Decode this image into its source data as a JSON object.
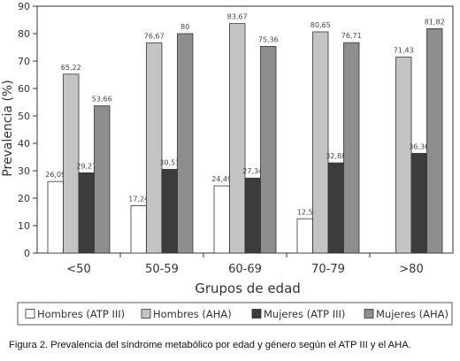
{
  "chart_data": {
    "type": "bar",
    "xlabel": "Grupos de edad",
    "ylabel": "Prevalencia (%)",
    "ylim": [
      0,
      90
    ],
    "yticks": [
      0,
      10,
      20,
      30,
      40,
      50,
      60,
      70,
      80,
      90
    ],
    "grid": false,
    "legend_position": "bottom",
    "categories": [
      "<50",
      "50-59",
      "60-69",
      "70-79",
      ">80"
    ],
    "series": [
      {
        "name": "Hombres (ATP III)",
        "color": "#ffffff",
        "values": [
          26.09,
          17.24,
          24.49,
          12.5,
          null
        ],
        "labels": [
          "26,09",
          "17,24",
          "24,49",
          "12,5",
          ""
        ]
      },
      {
        "name": "Hombres (AHA)",
        "color": "#c4c4c4",
        "values": [
          65.22,
          76.67,
          83.67,
          80.65,
          71.43
        ],
        "labels": [
          "65,22",
          "76,67",
          "83,67",
          "80,65",
          "71,43"
        ]
      },
      {
        "name": "Mujeres (ATP III)",
        "color": "#3c3c3c",
        "values": [
          29.27,
          30.53,
          27.34,
          32.88,
          36.36
        ],
        "labels": [
          "29,27",
          "30,53",
          "27,34",
          "32,88",
          "36,36"
        ]
      },
      {
        "name": "Mujeres (AHA)",
        "color": "#8e8e8e",
        "values": [
          53.66,
          80,
          75.36,
          76.71,
          81.82
        ],
        "labels": [
          "53,66",
          "80",
          "75,36",
          "76,71",
          "81,82"
        ]
      }
    ]
  },
  "caption": "Figura 2. Prevalencia del síndrome metabólico por edad y género según el ATP III y el AHA."
}
